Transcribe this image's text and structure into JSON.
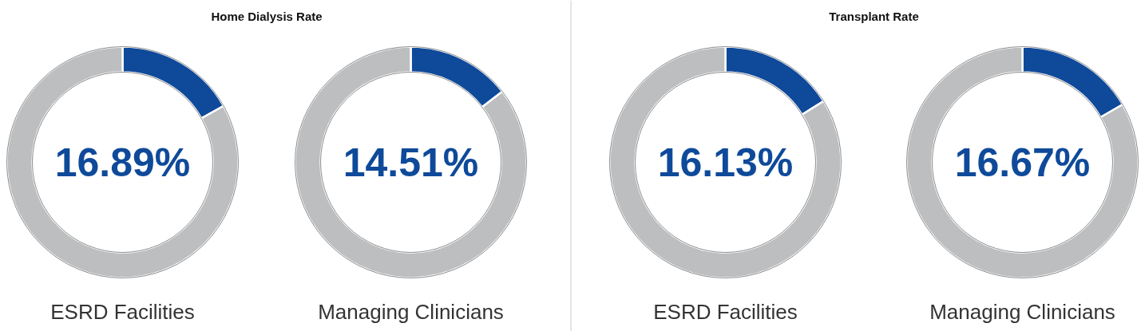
{
  "chart_data": [
    {
      "type": "donut",
      "title": "Home Dialysis Rate",
      "xlabel": "ESRD Facilities",
      "categories": [
        null,
        null
      ],
      "values": [
        16.89,
        83.11
      ],
      "colors": [
        "#0f4a9a",
        "#bcbec0"
      ],
      "value_labels": [
        "16.89%",
        null
      ]
    },
    {
      "type": "donut",
      "xlabel": "Managing Clinicians",
      "categories": [
        null,
        null
      ],
      "values": [
        14.51,
        85.49
      ],
      "colors": [
        "#0f4a9a",
        "#bcbec0"
      ],
      "value_labels": [
        "14.51%",
        null
      ]
    },
    {
      "type": "donut",
      "title": "Transplant Rate",
      "xlabel": "ESRD Facilities",
      "categories": [
        null,
        null
      ],
      "values": [
        16.13,
        83.87
      ],
      "colors": [
        "#0f4a9a",
        "#bcbec0"
      ],
      "value_labels": [
        "16.13%",
        null
      ]
    },
    {
      "type": "donut",
      "xlabel": "Managing Clinicians",
      "categories": [
        null,
        null
      ],
      "values": [
        16.67,
        83.33
      ],
      "colors": [
        "#0f4a9a",
        "#bcbec0"
      ],
      "value_labels": [
        "16.67%",
        null
      ]
    }
  ]
}
